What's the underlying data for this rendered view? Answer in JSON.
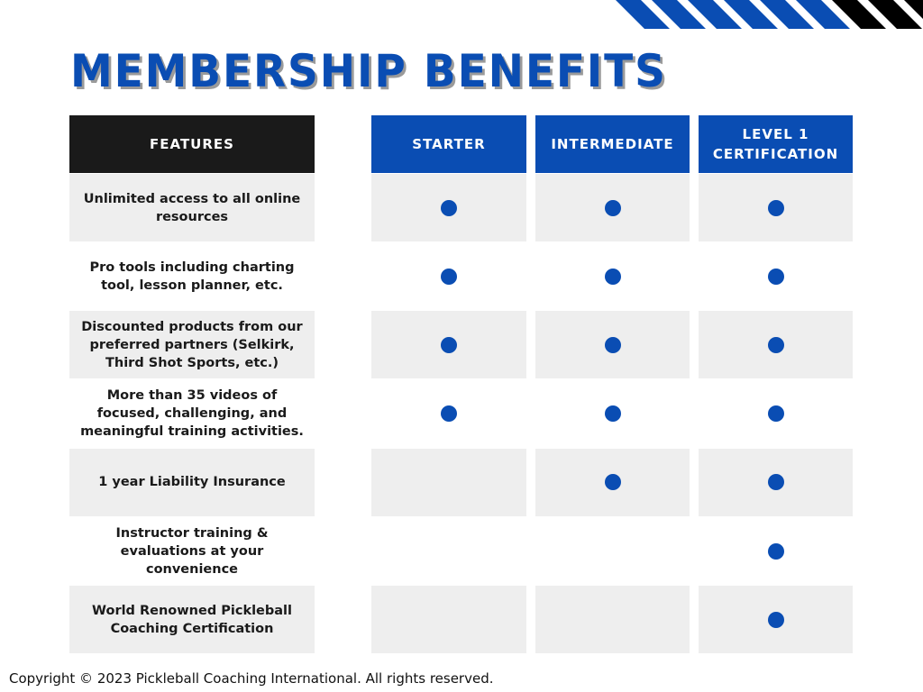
{
  "title": "MEMBERSHIP BENEFITS",
  "colors": {
    "accent": "#0a4db3",
    "header_dark": "#1a1a1a",
    "row_gray": "#eeeeee"
  },
  "headers": {
    "features": "FEATURES",
    "starter": "STARTER",
    "intermediate": "INTERMEDIATE",
    "level1": "LEVEL 1 CERTIFICATION"
  },
  "rows": [
    {
      "feature": "Unlimited access to all online resources",
      "starter": true,
      "intermediate": true,
      "level1": true
    },
    {
      "feature": "Pro tools including charting tool, lesson planner, etc.",
      "starter": true,
      "intermediate": true,
      "level1": true
    },
    {
      "feature": "Discounted products from our preferred partners (Selkirk, Third Shot Sports, etc.)",
      "starter": true,
      "intermediate": true,
      "level1": true
    },
    {
      "feature": "More than 35 videos of focused, challenging, and meaningful training activities.",
      "starter": true,
      "intermediate": true,
      "level1": true
    },
    {
      "feature": "1 year Liability Insurance",
      "starter": false,
      "intermediate": true,
      "level1": true
    },
    {
      "feature": "Instructor training & evaluations at your convenience",
      "starter": false,
      "intermediate": false,
      "level1": true
    },
    {
      "feature": "World Renowned Pickleball Coaching Certification",
      "starter": false,
      "intermediate": false,
      "level1": true
    }
  ],
  "footer": "Copyright © 2023 Pickleball Coaching International. All rights reserved."
}
